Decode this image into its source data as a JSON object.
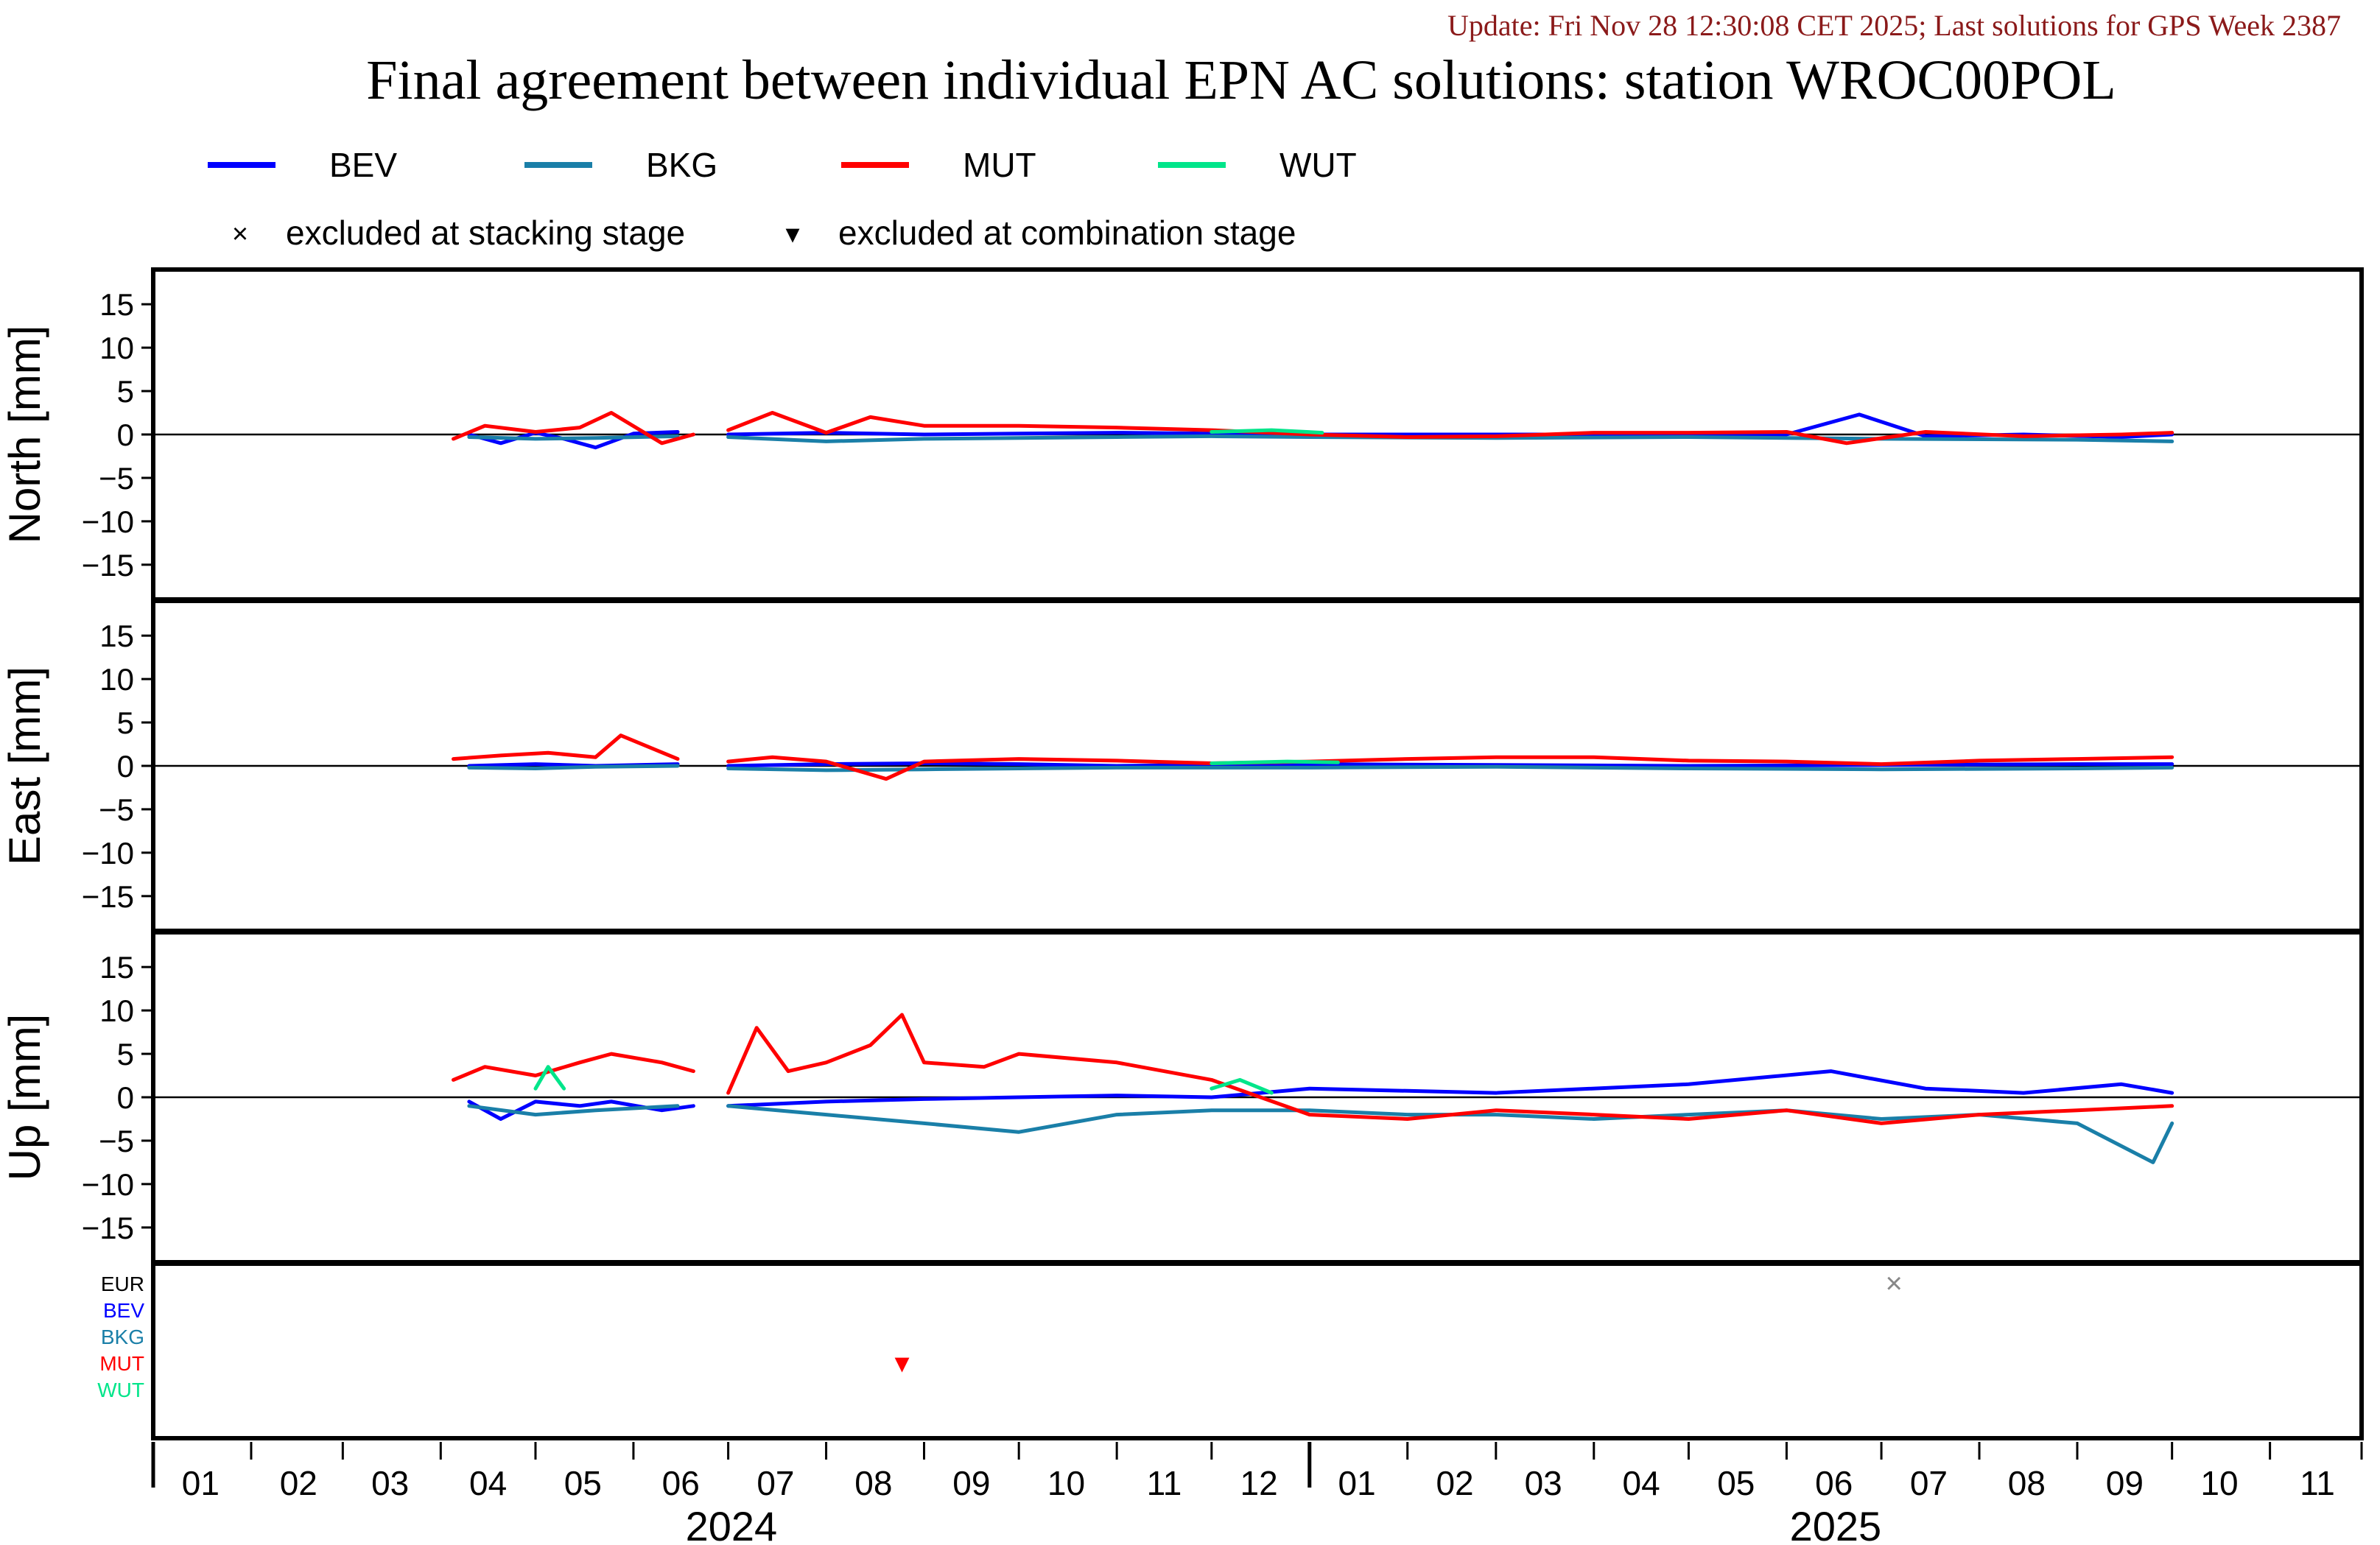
{
  "header": {
    "update_text": "Update: Fri Nov 28 12:30:08 CET 2025; Last solutions for GPS Week 2387",
    "update_color": "#8b1a1a"
  },
  "chart_data": {
    "type": "line",
    "title": "Final agreement between individual EPN AC solutions: station WROC00POL",
    "x_range": [
      "2024-01-01",
      "2025-11-30"
    ],
    "x_tick_labels": [
      "01",
      "02",
      "03",
      "04",
      "05",
      "06",
      "07",
      "08",
      "09",
      "10",
      "11",
      "12",
      "01",
      "02",
      "03",
      "04",
      "05",
      "06",
      "07",
      "08",
      "09",
      "10",
      "11"
    ],
    "years": [
      "2024",
      "2025"
    ],
    "legend": {
      "series": [
        {
          "name": "BEV",
          "color": "#0000ff"
        },
        {
          "name": "BKG",
          "color": "#1a7fa8"
        },
        {
          "name": "MUT",
          "color": "#ff0000"
        },
        {
          "name": "WUT",
          "color": "#00e58a"
        }
      ],
      "markers": [
        {
          "symbol": "×",
          "label": "excluded at stacking stage"
        },
        {
          "symbol": "▾",
          "label": "excluded at combination stage"
        }
      ]
    },
    "panels": [
      {
        "ylabel": "North [mm]",
        "ylim": [
          -19,
          19
        ],
        "y_ticks": [
          15,
          10,
          5,
          0,
          -5,
          -10,
          -15
        ],
        "y_tick_labels": [
          "15",
          "10",
          "5",
          "0",
          "−5",
          "−10",
          "−15"
        ],
        "series": [
          {
            "name": "BEV",
            "segments": [
              {
                "x": [
                  "2024-04-10",
                  "2024-04-20",
                  "2024-05-01",
                  "2024-05-10",
                  "2024-05-20",
                  "2024-06-01",
                  "2024-06-15"
                ],
                "y": [
                  0.0,
                  -1.0,
                  0.2,
                  -0.5,
                  -1.5,
                  0.1,
                  0.3
                ]
              },
              {
                "x": [
                  "2024-07-01",
                  "2024-08-01",
                  "2024-09-01",
                  "2024-10-01",
                  "2024-11-01",
                  "2024-12-01",
                  "2025-01-01",
                  "2025-03-01",
                  "2025-06-01",
                  "2025-06-24",
                  "2025-07-15",
                  "2025-08-15",
                  "2025-09-15",
                  "2025-10-01"
                ],
                "y": [
                  0.0,
                  0.2,
                  0.0,
                  0.1,
                  0.2,
                  0.1,
                  0.0,
                  0.0,
                  0.0,
                  2.3,
                  -0.2,
                  0.0,
                  -0.3,
                  0.0
                ]
              }
            ]
          },
          {
            "name": "BKG",
            "segments": [
              {
                "x": [
                  "2024-04-10",
                  "2024-05-01",
                  "2024-05-20",
                  "2024-06-15"
                ],
                "y": [
                  -0.3,
                  -0.5,
                  -0.4,
                  -0.2
                ]
              },
              {
                "x": [
                  "2024-07-01",
                  "2024-08-01",
                  "2024-09-01",
                  "2024-10-01",
                  "2024-11-01",
                  "2024-12-01",
                  "2025-01-01",
                  "2025-03-01",
                  "2025-05-01",
                  "2025-07-01",
                  "2025-09-01",
                  "2025-10-01"
                ],
                "y": [
                  -0.3,
                  -0.8,
                  -0.5,
                  -0.4,
                  -0.3,
                  -0.2,
                  -0.3,
                  -0.4,
                  -0.3,
                  -0.5,
                  -0.6,
                  -0.8
                ]
              }
            ]
          },
          {
            "name": "MUT",
            "segments": [
              {
                "x": [
                  "2024-04-05",
                  "2024-04-15",
                  "2024-05-01",
                  "2024-05-15",
                  "2024-05-25",
                  "2024-06-10",
                  "2024-06-20"
                ],
                "y": [
                  -0.5,
                  1.0,
                  0.3,
                  0.8,
                  2.5,
                  -1.0,
                  0.0
                ]
              },
              {
                "x": [
                  "2024-07-01",
                  "2024-07-15",
                  "2024-08-01",
                  "2024-08-15",
                  "2024-09-01",
                  "2024-10-01",
                  "2024-11-01",
                  "2024-12-01",
                  "2025-01-01",
                  "2025-02-01",
                  "2025-03-01",
                  "2025-04-01",
                  "2025-05-01",
                  "2025-06-01",
                  "2025-06-20",
                  "2025-07-15",
                  "2025-08-15",
                  "2025-09-15",
                  "2025-10-01"
                ],
                "y": [
                  0.5,
                  2.5,
                  0.2,
                  2.0,
                  1.0,
                  1.0,
                  0.8,
                  0.5,
                  0.0,
                  -0.3,
                  -0.2,
                  0.2,
                  0.2,
                  0.3,
                  -1.0,
                  0.3,
                  -0.2,
                  0.0,
                  0.2
                ]
              }
            ]
          },
          {
            "name": "WUT",
            "segments": [
              {
                "x": [
                  "2024-12-01",
                  "2024-12-20",
                  "2025-01-05"
                ],
                "y": [
                  0.3,
                  0.5,
                  0.2
                ]
              }
            ]
          }
        ]
      },
      {
        "ylabel": "East [mm]",
        "ylim": [
          -19,
          19
        ],
        "y_ticks": [
          15,
          10,
          5,
          0,
          -5,
          -10,
          -15
        ],
        "y_tick_labels": [
          "15",
          "10",
          "5",
          "0",
          "−5",
          "−10",
          "−15"
        ],
        "series": [
          {
            "name": "BEV",
            "segments": [
              {
                "x": [
                  "2024-04-10",
                  "2024-05-01",
                  "2024-05-20",
                  "2024-06-15"
                ],
                "y": [
                  0.0,
                  0.2,
                  0.0,
                  0.2
                ]
              },
              {
                "x": [
                  "2024-07-01",
                  "2024-08-01",
                  "2024-09-01",
                  "2024-10-01",
                  "2024-11-01",
                  "2024-12-01",
                  "2025-01-01",
                  "2025-03-01",
                  "2025-05-01",
                  "2025-07-01",
                  "2025-09-01",
                  "2025-10-01"
                ],
                "y": [
                  0.0,
                  0.2,
                  0.3,
                  0.2,
                  0.0,
                  0.1,
                  0.2,
                  0.1,
                  0.0,
                  0.1,
                  0.2,
                  0.2
                ]
              }
            ]
          },
          {
            "name": "BKG",
            "segments": [
              {
                "x": [
                  "2024-04-10",
                  "2024-05-01",
                  "2024-05-20",
                  "2024-06-15"
                ],
                "y": [
                  -0.2,
                  -0.3,
                  -0.1,
                  0.0
                ]
              },
              {
                "x": [
                  "2024-07-01",
                  "2024-08-01",
                  "2024-09-01",
                  "2024-10-01",
                  "2024-11-01",
                  "2024-12-01",
                  "2025-01-01",
                  "2025-03-01",
                  "2025-05-01",
                  "2025-07-01",
                  "2025-09-01",
                  "2025-10-01"
                ],
                "y": [
                  -0.3,
                  -0.5,
                  -0.4,
                  -0.3,
                  -0.2,
                  -0.2,
                  -0.2,
                  -0.1,
                  -0.3,
                  -0.4,
                  -0.3,
                  -0.2
                ]
              }
            ]
          },
          {
            "name": "MUT",
            "segments": [
              {
                "x": [
                  "2024-04-05",
                  "2024-04-20",
                  "2024-05-05",
                  "2024-05-20",
                  "2024-05-28",
                  "2024-06-15"
                ],
                "y": [
                  0.8,
                  1.2,
                  1.5,
                  1.0,
                  3.5,
                  0.8
                ]
              },
              {
                "x": [
                  "2024-07-01",
                  "2024-07-15",
                  "2024-08-01",
                  "2024-08-20",
                  "2024-09-01",
                  "2024-10-01",
                  "2024-11-01",
                  "2024-12-01",
                  "2025-01-01",
                  "2025-02-01",
                  "2025-03-01",
                  "2025-04-01",
                  "2025-05-01",
                  "2025-06-01",
                  "2025-07-01",
                  "2025-08-01",
                  "2025-09-01",
                  "2025-10-01"
                ],
                "y": [
                  0.5,
                  1.0,
                  0.5,
                  -1.5,
                  0.5,
                  0.8,
                  0.6,
                  0.3,
                  0.5,
                  0.8,
                  1.0,
                  1.0,
                  0.6,
                  0.5,
                  0.2,
                  0.6,
                  0.8,
                  1.0
                ]
              }
            ]
          },
          {
            "name": "WUT",
            "segments": [
              {
                "x": [
                  "2024-12-01",
                  "2024-12-25",
                  "2025-01-10"
                ],
                "y": [
                  0.3,
                  0.5,
                  0.4
                ]
              }
            ]
          }
        ]
      },
      {
        "ylabel": "Up [mm]",
        "ylim": [
          -19,
          19
        ],
        "y_ticks": [
          15,
          10,
          5,
          0,
          -5,
          -10,
          -15
        ],
        "y_tick_labels": [
          "15",
          "10",
          "5",
          "0",
          "−5",
          "−10",
          "−15"
        ],
        "series": [
          {
            "name": "BEV",
            "segments": [
              {
                "x": [
                  "2024-04-10",
                  "2024-04-20",
                  "2024-05-01",
                  "2024-05-15",
                  "2024-05-25",
                  "2024-06-10",
                  "2024-06-20"
                ],
                "y": [
                  -0.5,
                  -2.5,
                  -0.5,
                  -1.0,
                  -0.5,
                  -1.5,
                  -1.0
                ]
              },
              {
                "x": [
                  "2024-07-01",
                  "2024-08-01",
                  "2024-09-01",
                  "2024-10-01",
                  "2024-11-01",
                  "2024-12-01",
                  "2025-01-01",
                  "2025-03-01",
                  "2025-05-01",
                  "2025-06-15",
                  "2025-07-15",
                  "2025-08-15",
                  "2025-09-15",
                  "2025-10-01"
                ],
                "y": [
                  -1.0,
                  -0.5,
                  -0.2,
                  0.0,
                  0.2,
                  0.0,
                  1.0,
                  0.5,
                  1.5,
                  3.0,
                  1.0,
                  0.5,
                  1.5,
                  0.5
                ]
              }
            ]
          },
          {
            "name": "BKG",
            "segments": [
              {
                "x": [
                  "2024-04-10",
                  "2024-05-01",
                  "2024-05-20",
                  "2024-06-15"
                ],
                "y": [
                  -1.0,
                  -2.0,
                  -1.5,
                  -1.0
                ]
              },
              {
                "x": [
                  "2024-07-01",
                  "2024-08-01",
                  "2024-09-01",
                  "2024-10-01",
                  "2024-11-01",
                  "2024-12-01",
                  "2025-01-01",
                  "2025-02-01",
                  "2025-03-01",
                  "2025-04-01",
                  "2025-05-01",
                  "2025-06-01",
                  "2025-07-01",
                  "2025-08-01",
                  "2025-09-01",
                  "2025-09-25",
                  "2025-10-01"
                ],
                "y": [
                  -1.0,
                  -2.0,
                  -3.0,
                  -4.0,
                  -2.0,
                  -1.5,
                  -1.5,
                  -2.0,
                  -2.0,
                  -2.5,
                  -2.0,
                  -1.5,
                  -2.5,
                  -2.0,
                  -3.0,
                  -7.5,
                  -3.0
                ]
              }
            ]
          },
          {
            "name": "MUT",
            "segments": [
              {
                "x": [
                  "2024-04-05",
                  "2024-04-15",
                  "2024-05-01",
                  "2024-05-15",
                  "2024-05-25",
                  "2024-06-10",
                  "2024-06-20"
                ],
                "y": [
                  2.0,
                  3.5,
                  2.5,
                  4.0,
                  5.0,
                  4.0,
                  3.0
                ]
              },
              {
                "x": [
                  "2024-07-01",
                  "2024-07-10",
                  "2024-07-20",
                  "2024-08-01",
                  "2024-08-15",
                  "2024-08-25",
                  "2024-09-01",
                  "2024-09-20",
                  "2024-10-01",
                  "2024-11-01",
                  "2024-12-01",
                  "2025-01-01",
                  "2025-02-01",
                  "2025-03-01",
                  "2025-04-01",
                  "2025-05-01",
                  "2025-06-01",
                  "2025-07-01",
                  "2025-08-01",
                  "2025-09-01",
                  "2025-10-01"
                ],
                "y": [
                  0.5,
                  8.0,
                  3.0,
                  4.0,
                  6.0,
                  9.5,
                  4.0,
                  3.5,
                  5.0,
                  4.0,
                  2.0,
                  -2.0,
                  -2.5,
                  -1.5,
                  -2.0,
                  -2.5,
                  -1.5,
                  -3.0,
                  -2.0,
                  -1.5,
                  -1.0
                ]
              }
            ]
          },
          {
            "name": "WUT",
            "segments": [
              {
                "x": [
                  "2024-05-01",
                  "2024-05-05",
                  "2024-05-10"
                ],
                "y": [
                  1.0,
                  3.5,
                  1.0
                ]
              },
              {
                "x": [
                  "2024-12-01",
                  "2024-12-10",
                  "2024-12-20"
                ],
                "y": [
                  1.0,
                  2.0,
                  0.5
                ]
              }
            ]
          }
        ]
      }
    ],
    "exclusions": {
      "row_labels": [
        {
          "name": "EUR",
          "color": "#000000"
        },
        {
          "name": "BEV",
          "color": "#0000ff"
        },
        {
          "name": "BKG",
          "color": "#1a7fa8"
        },
        {
          "name": "MUT",
          "color": "#ff0000"
        },
        {
          "name": "WUT",
          "color": "#00e58a"
        }
      ],
      "events": [
        {
          "row": "MUT",
          "date": "2024-08-25",
          "symbol": "▾",
          "color": "#ff0000"
        },
        {
          "row": "EUR",
          "date": "2025-07-05",
          "symbol": "×",
          "color": "#888888"
        }
      ]
    }
  }
}
